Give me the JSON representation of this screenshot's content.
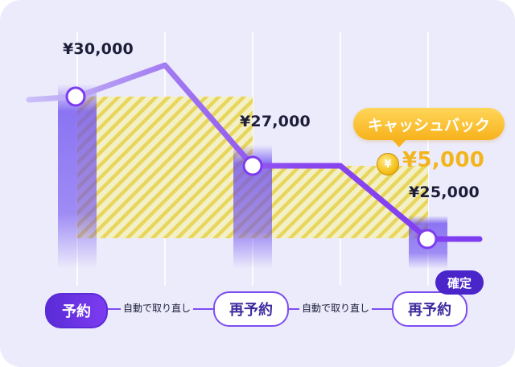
{
  "prices": {
    "first": "¥30,000",
    "second": "¥27,000",
    "third": "¥25,000"
  },
  "cashback": {
    "label": "キャッシュバック",
    "amount": "¥5,000",
    "coin_symbol": "¥",
    "color": "#f2b51d"
  },
  "steps": {
    "first": "予約",
    "second": "再予約",
    "third": "再予約"
  },
  "connectors": {
    "first": "自動で取り直し",
    "second": "自動で取り直し"
  },
  "confirm_badge": "確定",
  "colors": {
    "background": "#ecebfb",
    "line": "#7d3cf0",
    "hatch": "#e8d65c",
    "primary": "#5a2bd7"
  },
  "icons": {
    "coin": "coin-icon"
  }
}
